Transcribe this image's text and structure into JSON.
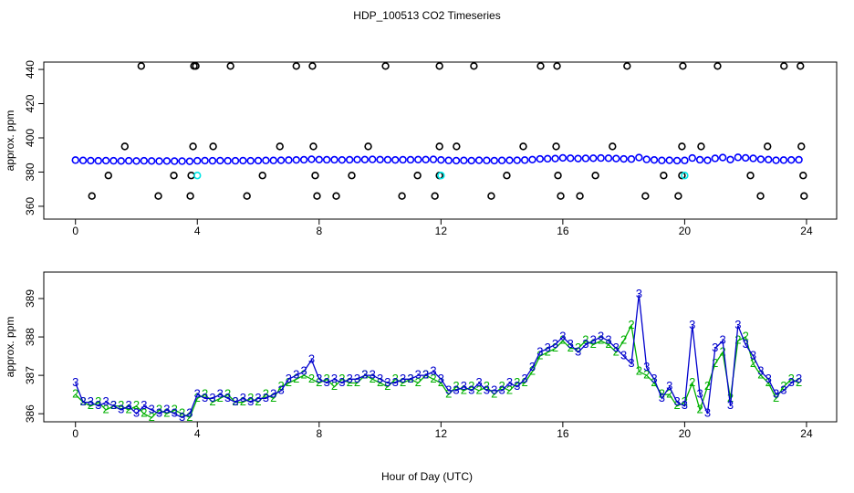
{
  "title": "HDP_100513  CO2 Timeseries",
  "xlabel": "Hour of Day (UTC)",
  "chart_data": [
    {
      "type": "scatter",
      "ylabel": "approx. ppm",
      "xlim": [
        -1.04,
        24.99
      ],
      "ylim": [
        352.5,
        444.3
      ],
      "xticks": [
        0,
        4,
        8,
        12,
        16,
        20,
        24
      ],
      "yticks": [
        360,
        380,
        400,
        420,
        440
      ],
      "series": [
        {
          "color": "#0000ff",
          "x": [
            0,
            0.25,
            0.5,
            0.75,
            1,
            1.25,
            1.5,
            1.75,
            2,
            2.25,
            2.5,
            2.75,
            3,
            3.25,
            3.5,
            3.75,
            4,
            4.25,
            4.5,
            4.75,
            5,
            5.25,
            5.5,
            5.75,
            6,
            6.25,
            6.5,
            6.75,
            7,
            7.25,
            7.5,
            7.75,
            8,
            8.25,
            8.5,
            8.75,
            9,
            9.25,
            9.5,
            9.75,
            10,
            10.25,
            10.5,
            10.75,
            11,
            11.25,
            11.5,
            11.75,
            12,
            12.25,
            12.5,
            12.75,
            13,
            13.25,
            13.5,
            13.75,
            14,
            14.25,
            14.5,
            14.75,
            15,
            15.25,
            15.5,
            15.75,
            16,
            16.25,
            16.5,
            16.75,
            17,
            17.25,
            17.5,
            17.75,
            18,
            18.25,
            18.5,
            18.75,
            19,
            19.25,
            19.5,
            19.75,
            20,
            20.25,
            20.5,
            20.75,
            21,
            21.25,
            21.5,
            21.75,
            22,
            22.25,
            22.5,
            22.75,
            23,
            23.25,
            23.5,
            23.75
          ],
          "values": [
            387,
            386.8,
            386.7,
            386.6,
            386.7,
            386.6,
            386.5,
            386.6,
            386.5,
            386.6,
            386.5,
            386.4,
            386.5,
            386.4,
            386.4,
            386.3,
            386.6,
            386.7,
            386.6,
            386.7,
            386.6,
            386.6,
            386.7,
            386.6,
            386.7,
            386.8,
            386.8,
            386.9,
            387,
            387.1,
            387.2,
            387.5,
            387.3,
            387.2,
            387.2,
            387.1,
            387.2,
            387.3,
            387.3,
            387.4,
            387.3,
            387.2,
            387.1,
            387.2,
            387.2,
            387.3,
            387.3,
            387.4,
            387.1,
            386.8,
            386.7,
            386.8,
            386.7,
            386.9,
            386.8,
            386.7,
            386.8,
            386.9,
            386.9,
            387,
            387.3,
            387.7,
            387.8,
            387.9,
            388.3,
            388.1,
            387.9,
            388,
            388.1,
            388.2,
            388.1,
            387.9,
            387.7,
            387.6,
            388.5,
            387.4,
            387.1,
            386.8,
            386.9,
            386.7,
            386.8,
            388.2,
            387.2,
            386.9,
            388,
            388.5,
            387.3,
            388.6,
            388.3,
            388,
            387.5,
            387.3,
            386.9,
            387,
            387.1,
            387.2
          ]
        },
        {
          "color": "#000000",
          "x": [
            2.16,
            3.89,
            3.95,
            5.09,
            7.25,
            7.78,
            10.18,
            11.95,
            13.08,
            15.27,
            15.81,
            18.11,
            19.94,
            21.08,
            23.26,
            23.8,
            0.54,
            2.72,
            3.77,
            5.63,
            7.93,
            8.56,
            10.72,
            11.8,
            13.65,
            15.93,
            16.56,
            18.71,
            19.79,
            22.49,
            23.92,
            1.62,
            3.86,
            4.52,
            6.71,
            7.81,
            9.61,
            11.95,
            12.51,
            14.7,
            15.78,
            17.63,
            19.91,
            20.54,
            22.72,
            23.83,
            1.08,
            3.23,
            3.8,
            6.14,
            7.87,
            9.07,
            11.23,
            11.95,
            14.16,
            15.84,
            17.07,
            19.31,
            19.91,
            22.16,
            23.89
          ],
          "values": [
            442,
            442,
            442,
            442,
            442,
            442,
            442,
            442,
            442,
            442,
            442,
            442,
            442,
            442,
            442,
            442,
            366,
            366,
            366,
            366,
            366,
            366,
            366,
            366,
            366,
            366,
            366,
            366,
            366,
            366,
            366,
            395,
            395,
            395,
            395,
            395,
            395,
            395,
            395,
            395,
            395,
            395,
            395,
            395,
            395,
            395,
            378,
            378,
            378,
            378,
            378,
            378,
            378,
            378,
            378,
            378,
            378,
            378,
            378,
            378,
            378
          ]
        },
        {
          "color": "#00e5e5",
          "x": [
            4.0,
            12.0,
            20.0
          ],
          "values": [
            378,
            378,
            378
          ]
        }
      ]
    },
    {
      "type": "line",
      "ylabel": "approx. ppm",
      "xlim": [
        -1.04,
        24.99
      ],
      "ylim": [
        385.79,
        389.69
      ],
      "xticks": [
        0,
        4,
        8,
        12,
        16,
        20,
        24
      ],
      "yticks": [
        386,
        387,
        388,
        389
      ],
      "series": [
        {
          "name": "2",
          "color": "#00b000",
          "x": [
            0,
            0.25,
            0.5,
            0.75,
            1,
            1.25,
            1.5,
            1.75,
            2,
            2.25,
            2.5,
            2.75,
            3,
            3.25,
            3.5,
            3.75,
            4,
            4.25,
            4.5,
            4.75,
            5,
            5.25,
            5.5,
            5.75,
            6,
            6.25,
            6.5,
            6.75,
            7,
            7.25,
            7.5,
            7.75,
            8,
            8.25,
            8.5,
            8.75,
            9,
            9.25,
            9.5,
            9.75,
            10,
            10.25,
            10.5,
            10.75,
            11,
            11.25,
            11.5,
            11.75,
            12,
            12.25,
            12.5,
            12.75,
            13,
            13.25,
            13.5,
            13.75,
            14,
            14.25,
            14.5,
            14.75,
            15,
            15.25,
            15.5,
            15.75,
            16,
            16.25,
            16.5,
            16.75,
            17,
            17.25,
            17.5,
            17.75,
            18,
            18.25,
            18.5,
            18.75,
            19,
            19.25,
            19.5,
            19.75,
            20,
            20.25,
            20.5,
            20.75,
            21,
            21.25,
            21.5,
            21.75,
            22,
            22.25,
            22.5,
            22.75,
            23,
            23.25,
            23.5,
            23.75
          ],
          "values": [
            386.5,
            386.3,
            386.2,
            386.3,
            386.1,
            386.2,
            386.2,
            386.1,
            386.2,
            386.0,
            385.9,
            386.1,
            386.0,
            386.1,
            386.0,
            385.9,
            386.4,
            386.5,
            386.3,
            386.4,
            386.5,
            386.3,
            386.3,
            386.4,
            386.3,
            386.5,
            386.4,
            386.7,
            386.8,
            386.9,
            387.0,
            386.9,
            386.8,
            386.9,
            386.7,
            386.9,
            386.8,
            386.8,
            387.0,
            386.9,
            386.8,
            386.7,
            386.9,
            386.8,
            386.9,
            386.8,
            387.0,
            386.9,
            386.8,
            386.5,
            386.7,
            386.6,
            386.7,
            386.6,
            386.7,
            386.5,
            386.7,
            386.6,
            386.8,
            386.8,
            387.1,
            387.5,
            387.6,
            387.7,
            387.9,
            387.7,
            387.7,
            387.9,
            387.8,
            387.9,
            387.8,
            387.6,
            387.9,
            388.3,
            387.1,
            387.0,
            386.8,
            386.5,
            386.5,
            386.2,
            386.3,
            386.8,
            386.1,
            386.7,
            387.3,
            387.6,
            386.4,
            387.9,
            388.0,
            387.3,
            387.0,
            386.8,
            386.4,
            386.7,
            386.9,
            386.8
          ]
        },
        {
          "name": "3",
          "color": "#0000cd",
          "x": [
            0,
            0.25,
            0.5,
            0.75,
            1,
            1.25,
            1.5,
            1.75,
            2,
            2.25,
            2.5,
            2.75,
            3,
            3.25,
            3.5,
            3.75,
            4,
            4.25,
            4.5,
            4.75,
            5,
            5.25,
            5.5,
            5.75,
            6,
            6.25,
            6.5,
            6.75,
            7,
            7.25,
            7.5,
            7.75,
            8,
            8.25,
            8.5,
            8.75,
            9,
            9.25,
            9.5,
            9.75,
            10,
            10.25,
            10.5,
            10.75,
            11,
            11.25,
            11.5,
            11.75,
            12,
            12.25,
            12.5,
            12.75,
            13,
            13.25,
            13.5,
            13.75,
            14,
            14.25,
            14.5,
            14.75,
            15,
            15.25,
            15.5,
            15.75,
            16,
            16.25,
            16.5,
            16.75,
            17,
            17.25,
            17.5,
            17.75,
            18,
            18.25,
            18.5,
            18.75,
            19,
            19.25,
            19.5,
            19.75,
            20,
            20.25,
            20.5,
            20.75,
            21,
            21.25,
            21.5,
            21.75,
            22,
            22.25,
            22.5,
            22.75,
            23,
            23.25,
            23.5,
            23.75
          ],
          "values": [
            386.8,
            386.3,
            386.3,
            386.2,
            386.3,
            386.2,
            386.1,
            386.2,
            386.0,
            386.2,
            386.1,
            386.0,
            386.1,
            386.0,
            385.9,
            386.0,
            386.5,
            386.4,
            386.4,
            386.5,
            386.4,
            386.3,
            386.4,
            386.3,
            386.4,
            386.4,
            386.5,
            386.6,
            386.9,
            387.0,
            387.1,
            387.4,
            386.9,
            386.8,
            386.9,
            386.8,
            386.9,
            386.9,
            387.0,
            387.0,
            386.9,
            386.8,
            386.8,
            386.9,
            386.9,
            387.0,
            387.0,
            387.1,
            386.9,
            386.6,
            386.6,
            386.7,
            386.6,
            386.8,
            386.6,
            386.6,
            386.6,
            386.8,
            386.7,
            386.9,
            387.2,
            387.6,
            387.7,
            387.8,
            388.0,
            387.8,
            387.6,
            387.8,
            387.9,
            388.0,
            387.9,
            387.7,
            387.5,
            387.3,
            389.1,
            387.2,
            386.9,
            386.4,
            386.7,
            386.3,
            386.2,
            388.3,
            386.5,
            386.0,
            387.7,
            387.9,
            386.2,
            388.3,
            387.8,
            387.5,
            387.1,
            386.9,
            386.5,
            386.6,
            386.8,
            386.9
          ]
        }
      ]
    }
  ]
}
